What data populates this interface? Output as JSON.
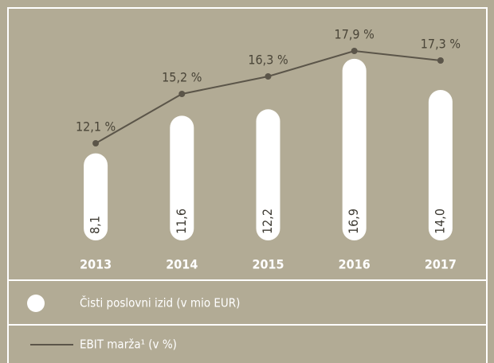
{
  "chart_data": {
    "type": "bar",
    "categories": [
      "2013",
      "2014",
      "2015",
      "2016",
      "2017"
    ],
    "series": [
      {
        "name": "Čisti poslovni izid (v mio EUR)",
        "type": "bar",
        "color": "#ffffff",
        "values": [
          8.1,
          11.6,
          12.2,
          16.9,
          14.0
        ],
        "value_labels": [
          "8,1",
          "11,6",
          "12,2",
          "16,9",
          "14,0"
        ]
      },
      {
        "name": "EBIT marža¹ (v %)",
        "type": "line",
        "axis": "y2",
        "color": "#5b5549",
        "values": [
          12.1,
          15.2,
          16.3,
          17.9,
          17.3
        ],
        "value_labels": [
          "12,1 %",
          "15,2 %",
          "16,3 %",
          "17,9 %",
          "17,3 %"
        ]
      }
    ],
    "ylim": [
      0,
      20
    ],
    "y2lim": [
      6,
      19.5
    ]
  }
}
